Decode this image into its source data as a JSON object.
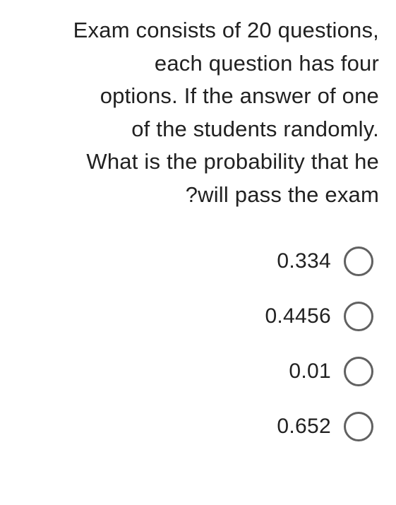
{
  "question": {
    "line1": "Exam consists of 20 questions,",
    "line2": "each question has four",
    "line3": "options. If the answer of one",
    "line4": "of the students randomly.",
    "line5": "What is the probability that he",
    "line6": "?will pass the exam"
  },
  "options": [
    {
      "label": "0.334"
    },
    {
      "label": "0.4456"
    },
    {
      "label": "0.01"
    },
    {
      "label": "0.652"
    }
  ],
  "styling": {
    "text_color": "#212121",
    "radio_border_color": "#616161",
    "background_color": "#ffffff",
    "question_fontsize": 31,
    "option_fontsize": 30,
    "radio_size": 42
  }
}
